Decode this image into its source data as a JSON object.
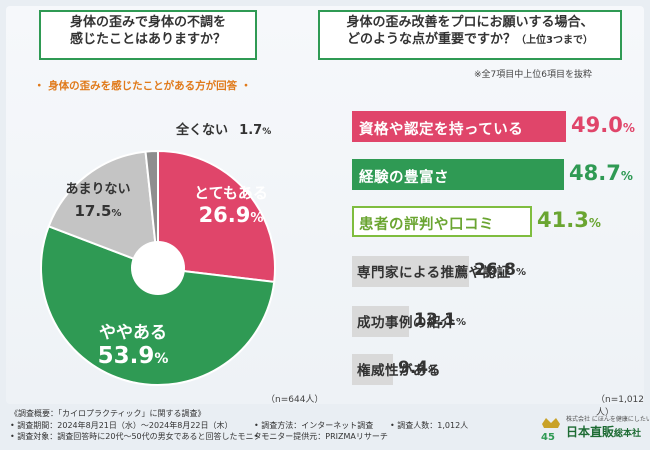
{
  "left": {
    "question_line1": "身体の歪みで身体の不調を",
    "question_line2": "感じたことはありますか？",
    "subtitle": "・ 身体の歪みを感じたことがある方が回答 ・",
    "sample": "（n=644人）"
  },
  "right": {
    "question_line1": "身体の歪み改善をプロにお願いする場合、",
    "question_line2": "どのような点が重要ですか？",
    "question_suffix": "（上位3つまで）",
    "note": "※全7項目中上位6項目を抜粋",
    "sample": "（n=1,012人）"
  },
  "chart_data": [
    {
      "type": "pie",
      "title": "身体の歪みで身体の不調を感じたことはありますか？",
      "categories": [
        "とてもある",
        "ややある",
        "あまりない",
        "全くない"
      ],
      "values": [
        26.9,
        53.9,
        17.5,
        1.7
      ],
      "colors": [
        "#e0456a",
        "#2f9a54",
        "#c4c4c4",
        "#8e8e8e"
      ],
      "labels": [
        {
          "name": "とてもある",
          "num": "26.9",
          "pct": "%"
        },
        {
          "name": "ややある",
          "num": "53.9",
          "pct": "%"
        },
        {
          "name": "あまりない",
          "num": "17.5",
          "pct": "%"
        },
        {
          "name": "全くない",
          "num": "1.7",
          "pct": "%"
        }
      ]
    },
    {
      "type": "bar",
      "title": "身体の歪み改善をプロにお願いする場合、どのような点が重要ですか？（上位3つまで）",
      "categories": [
        "資格や認定を持っている",
        "経験の豊富さ",
        "患者の評判や口コミ",
        "専門家による推薦や認証",
        "成功事例の紹介",
        "権威性がある"
      ],
      "values": [
        49.0,
        48.7,
        41.3,
        26.8,
        13.1,
        9.4
      ],
      "display": [
        {
          "num": "49.0",
          "pct": "%"
        },
        {
          "num": "48.7",
          "pct": "%"
        },
        {
          "num": "41.3",
          "pct": "%"
        },
        {
          "num": "26.8",
          "pct": "%"
        },
        {
          "num": "13.1",
          "pct": "%"
        },
        {
          "num": "9.4",
          "pct": "%"
        }
      ],
      "colors": [
        "#e0456a",
        "#2f9a54",
        "#7fbd3f",
        "#d9d9d9",
        "#d9d9d9",
        "#d9d9d9"
      ],
      "xlim": [
        0,
        50
      ]
    }
  ],
  "footer": {
    "line1": "《調査概要：「カイロプラクティック」に関する調査》",
    "period": "• 調査期間：2024年8月21日（水）〜2024年8月22日（木）",
    "method": "• 調査方法：インターネット調査",
    "count": "• 調査人数：1,012人",
    "target": "• 調査対象：調査回答時に20代〜50代の男女であると回答したモニター",
    "provider": "• モニター提供元：PRIZMAリサーチ"
  },
  "logo": {
    "small": "株式会社 にほんを健康にしたい",
    "name": "日本直販",
    "name_suffix": "総本社",
    "mark": "45"
  }
}
